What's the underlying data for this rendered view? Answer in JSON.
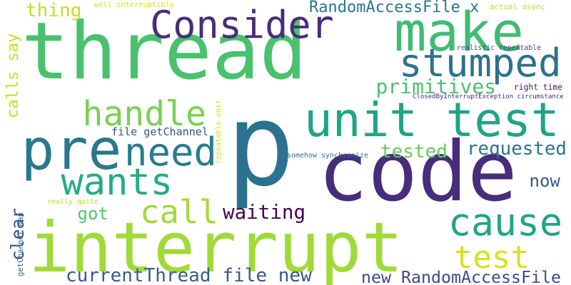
{
  "background": "#ffffff",
  "words": [
    {
      "text": "p",
      "color": "#2c728e"
    },
    {
      "text": "thread",
      "color": "#4ac16d"
    },
    {
      "text": "code",
      "color": "#472d7b"
    },
    {
      "text": "interrupt",
      "color": "#a0da39"
    },
    {
      "text": "unit test",
      "color": "#20a486"
    },
    {
      "text": "make",
      "color": "#3fbc73"
    },
    {
      "text": "pre",
      "color": "#2a788e"
    },
    {
      "text": "Consider",
      "color": "#472d7b"
    },
    {
      "text": "stumped",
      "color": "#2c728e"
    },
    {
      "text": "handle",
      "color": "#7ad151"
    },
    {
      "text": "need",
      "color": "#287c8e"
    },
    {
      "text": "wants",
      "color": "#25ab82"
    },
    {
      "text": "cause",
      "color": "#20a486"
    },
    {
      "text": "test",
      "color": "#d8e219"
    },
    {
      "text": "call",
      "color": "#a0da39"
    },
    {
      "text": "waiting",
      "color": "#440154"
    },
    {
      "text": "primitives",
      "color": "#4ac16d"
    },
    {
      "text": "tested",
      "color": "#65cb5e"
    },
    {
      "text": "requested",
      "color": "#2c728e"
    },
    {
      "text": "now",
      "color": "#39568c"
    },
    {
      "text": "clear",
      "color": "#3b528b"
    },
    {
      "text": "calls say",
      "color": "#c2df23"
    },
    {
      "text": "currentThread",
      "color": "#375b8d"
    },
    {
      "text": "file new",
      "color": "#39558c"
    },
    {
      "text": "new RandomAccessFile",
      "color": "#3e4a89"
    },
    {
      "text": "got",
      "color": "#52c569"
    },
    {
      "text": "thing",
      "color": "#c2df23"
    },
    {
      "text": "RandomAccessFile x",
      "color": "#2a768e"
    },
    {
      "text": "file getChannel",
      "color": "#3b528b"
    },
    {
      "text": "getChannel map",
      "color": "#31688e"
    },
    {
      "text": "well interruptible",
      "color": "#d8e219"
    },
    {
      "text": "actual async",
      "color": "#bddf26"
    },
    {
      "text": "realistic repeatable",
      "color": "#3e4989"
    },
    {
      "text": "right time",
      "color": "#471365"
    },
    {
      "text": "ClosedByInterruptException circumstance",
      "color": "#482878"
    },
    {
      "text": "somehow synchronize",
      "color": "#2a768e"
    },
    {
      "text": "repeatable unit",
      "color": "#d0e11c"
    },
    {
      "text": "really quite",
      "color": "#bddf26"
    }
  ]
}
